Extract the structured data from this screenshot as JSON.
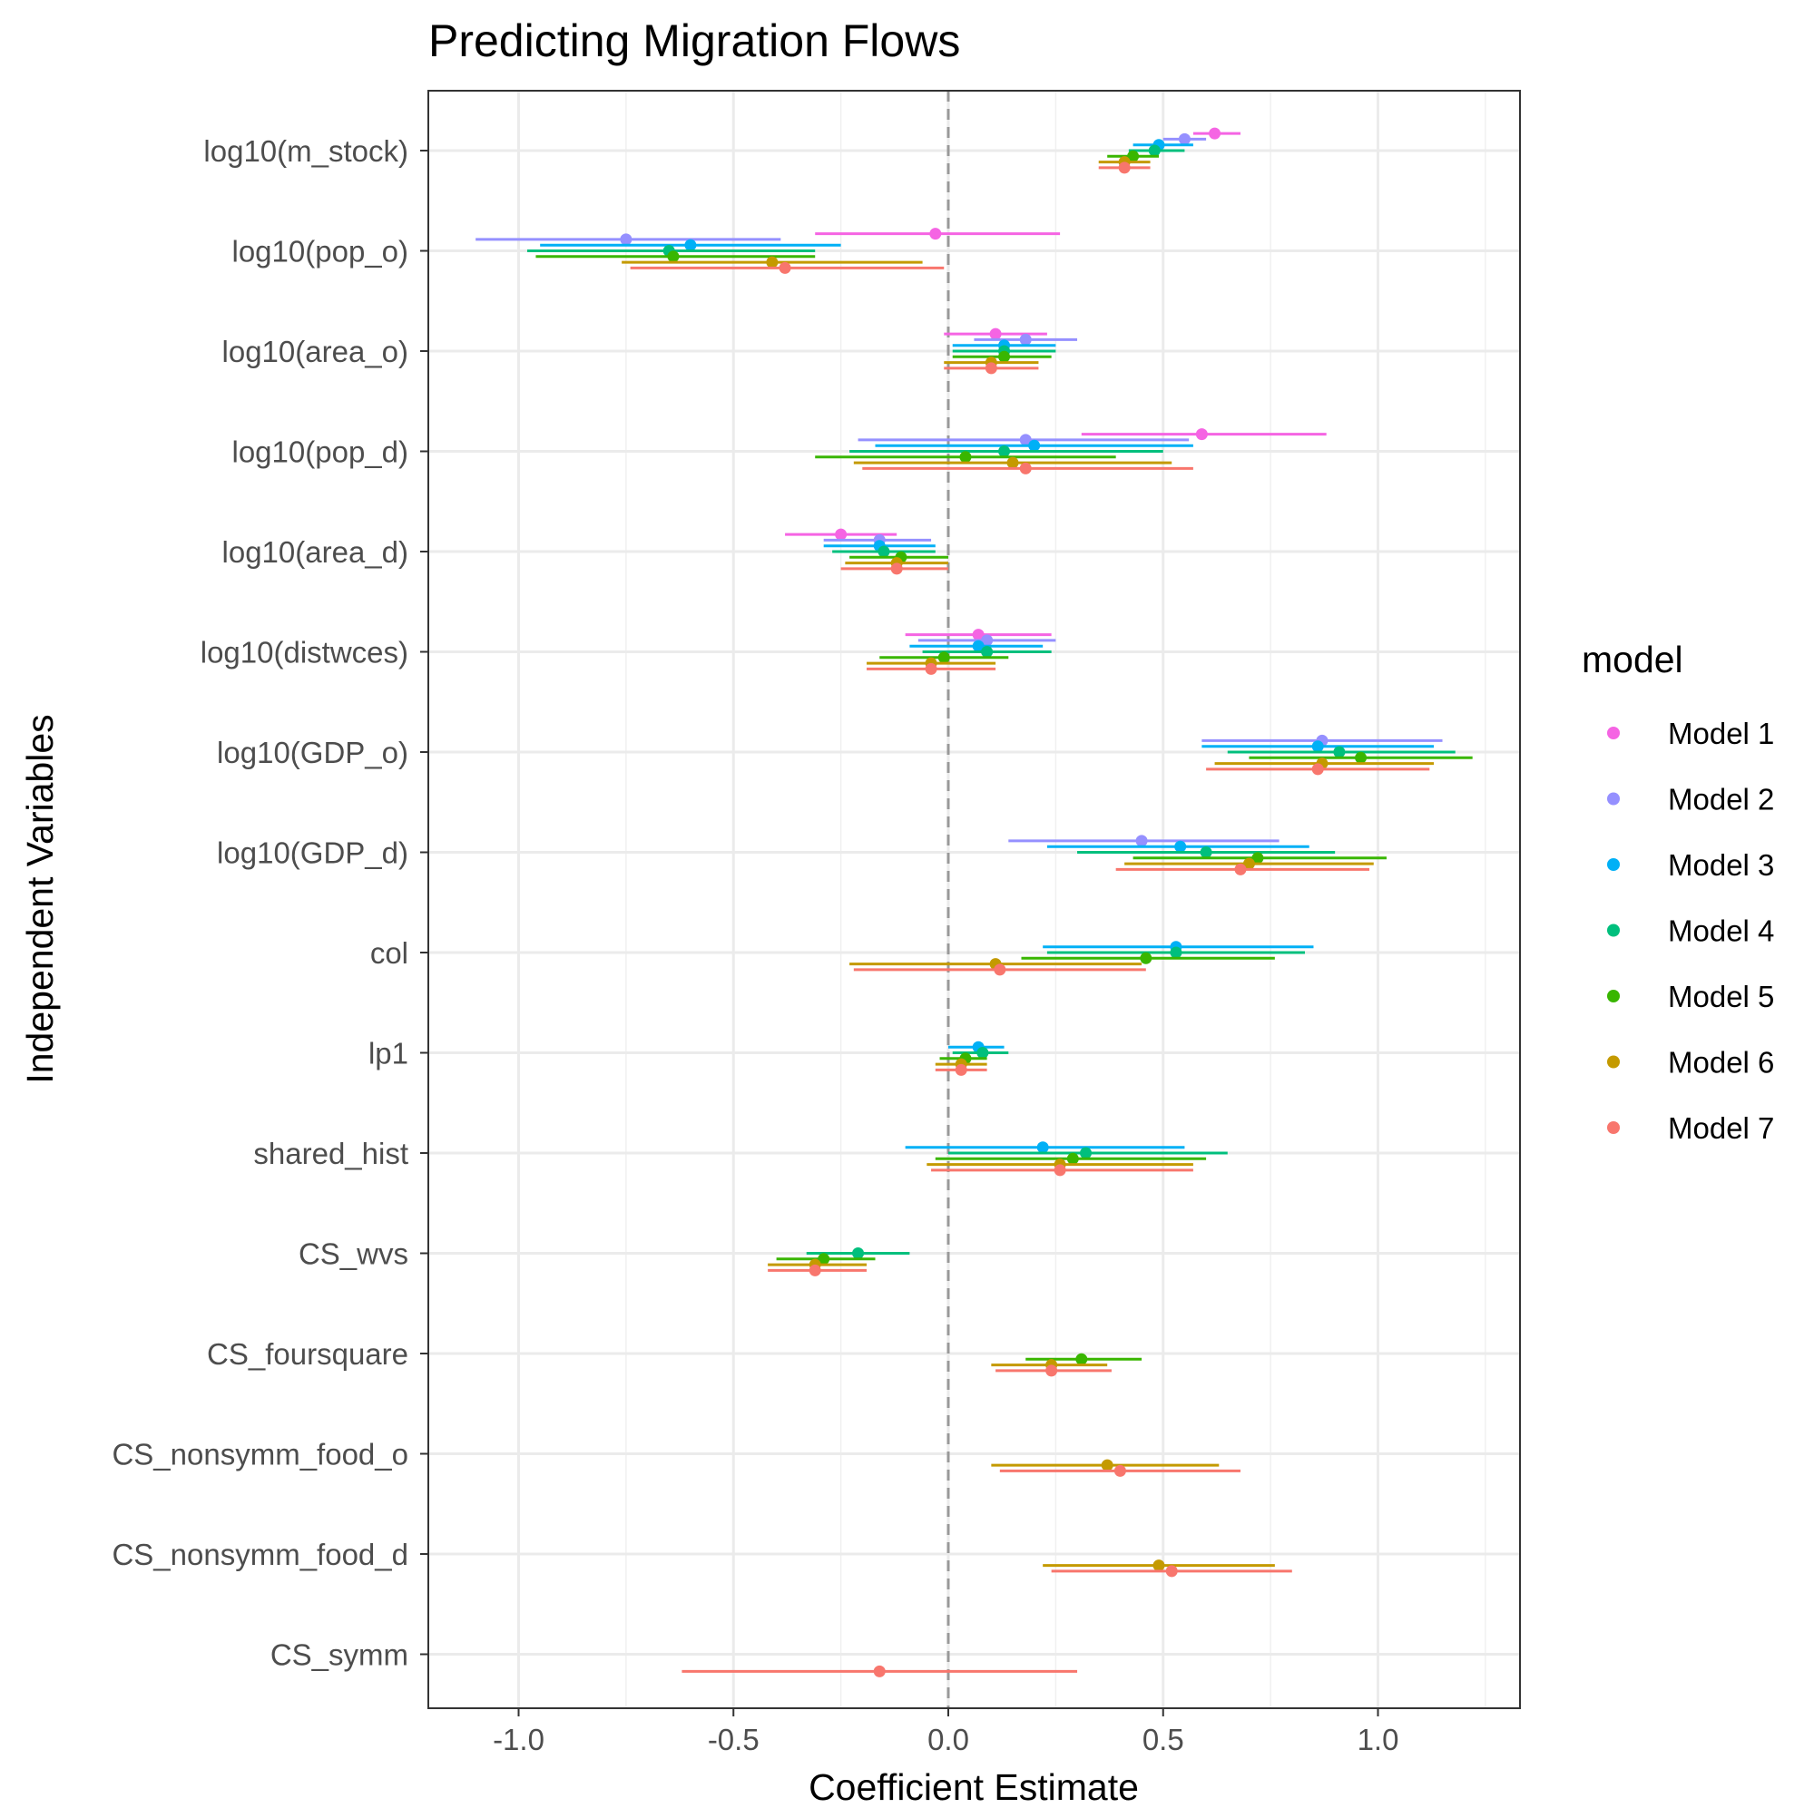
{
  "chart_data": {
    "type": "coefficient-plot",
    "title": "Predicting Migration Flows",
    "xlabel": "Coefficient Estimate",
    "ylabel": "Independent Variables",
    "xlim": [
      -1.2,
      1.3
    ],
    "x_ticks": [
      -1.0,
      -0.5,
      0.0,
      0.5,
      1.0
    ],
    "x_tick_labels": [
      "-1.0",
      "-0.5",
      "0.0",
      "0.5",
      "1.0"
    ],
    "reference_line": 0,
    "grid": true,
    "legend": {
      "title": "model",
      "position": "right"
    },
    "categories": [
      "log10(m_stock)",
      "log10(pop_o)",
      "log10(area_o)",
      "log10(pop_d)",
      "log10(area_d)",
      "log10(distwces)",
      "log10(GDP_o)",
      "log10(GDP_d)",
      "col",
      "lp1",
      "shared_hist",
      "CS_wvs",
      "CS_foursquare",
      "CS_nonsymm_food_o",
      "CS_nonsymm_food_d",
      "CS_symm"
    ],
    "series": [
      {
        "name": "Model 1",
        "color": "#F564E3",
        "points": [
          {
            "variable": "log10(m_stock)",
            "estimate": 0.62,
            "low": 0.57,
            "high": 0.68
          },
          {
            "variable": "log10(pop_o)",
            "estimate": -0.03,
            "low": -0.31,
            "high": 0.26
          },
          {
            "variable": "log10(area_o)",
            "estimate": 0.11,
            "low": -0.01,
            "high": 0.23
          },
          {
            "variable": "log10(pop_d)",
            "estimate": 0.59,
            "low": 0.31,
            "high": 0.88
          },
          {
            "variable": "log10(area_d)",
            "estimate": -0.25,
            "low": -0.38,
            "high": -0.12
          },
          {
            "variable": "log10(distwces)",
            "estimate": 0.07,
            "low": -0.1,
            "high": 0.24
          }
        ]
      },
      {
        "name": "Model 2",
        "color": "#9590FF",
        "points": [
          {
            "variable": "log10(m_stock)",
            "estimate": 0.55,
            "low": 0.5,
            "high": 0.6
          },
          {
            "variable": "log10(pop_o)",
            "estimate": -0.75,
            "low": -1.1,
            "high": -0.39
          },
          {
            "variable": "log10(area_o)",
            "estimate": 0.18,
            "low": 0.06,
            "high": 0.3
          },
          {
            "variable": "log10(pop_d)",
            "estimate": 0.18,
            "low": -0.21,
            "high": 0.56
          },
          {
            "variable": "log10(area_d)",
            "estimate": -0.16,
            "low": -0.29,
            "high": -0.04
          },
          {
            "variable": "log10(distwces)",
            "estimate": 0.09,
            "low": -0.07,
            "high": 0.25
          },
          {
            "variable": "log10(GDP_o)",
            "estimate": 0.87,
            "low": 0.59,
            "high": 1.15
          },
          {
            "variable": "log10(GDP_d)",
            "estimate": 0.45,
            "low": 0.14,
            "high": 0.77
          }
        ]
      },
      {
        "name": "Model 3",
        "color": "#00B0F6",
        "points": [
          {
            "variable": "log10(m_stock)",
            "estimate": 0.49,
            "low": 0.43,
            "high": 0.57
          },
          {
            "variable": "log10(pop_o)",
            "estimate": -0.6,
            "low": -0.95,
            "high": -0.25
          },
          {
            "variable": "log10(area_o)",
            "estimate": 0.13,
            "low": 0.01,
            "high": 0.25
          },
          {
            "variable": "log10(pop_d)",
            "estimate": 0.2,
            "low": -0.17,
            "high": 0.57
          },
          {
            "variable": "log10(area_d)",
            "estimate": -0.16,
            "low": -0.29,
            "high": -0.03
          },
          {
            "variable": "log10(distwces)",
            "estimate": 0.07,
            "low": -0.09,
            "high": 0.22
          },
          {
            "variable": "log10(GDP_o)",
            "estimate": 0.86,
            "low": 0.59,
            "high": 1.13
          },
          {
            "variable": "log10(GDP_d)",
            "estimate": 0.54,
            "low": 0.23,
            "high": 0.84
          },
          {
            "variable": "col",
            "estimate": 0.53,
            "low": 0.22,
            "high": 0.85
          },
          {
            "variable": "lp1",
            "estimate": 0.07,
            "low": 0.0,
            "high": 0.13
          },
          {
            "variable": "shared_hist",
            "estimate": 0.22,
            "low": -0.1,
            "high": 0.55
          }
        ]
      },
      {
        "name": "Model 4",
        "color": "#00BF7D",
        "points": [
          {
            "variable": "log10(m_stock)",
            "estimate": 0.48,
            "low": 0.42,
            "high": 0.55
          },
          {
            "variable": "log10(pop_o)",
            "estimate": -0.65,
            "low": -0.98,
            "high": -0.31
          },
          {
            "variable": "log10(area_o)",
            "estimate": 0.13,
            "low": 0.01,
            "high": 0.25
          },
          {
            "variable": "log10(pop_d)",
            "estimate": 0.13,
            "low": -0.23,
            "high": 0.5
          },
          {
            "variable": "log10(area_d)",
            "estimate": -0.15,
            "low": -0.27,
            "high": -0.03
          },
          {
            "variable": "log10(distwces)",
            "estimate": 0.09,
            "low": -0.06,
            "high": 0.24
          },
          {
            "variable": "log10(GDP_o)",
            "estimate": 0.91,
            "low": 0.65,
            "high": 1.18
          },
          {
            "variable": "log10(GDP_d)",
            "estimate": 0.6,
            "low": 0.3,
            "high": 0.9
          },
          {
            "variable": "col",
            "estimate": 0.53,
            "low": 0.23,
            "high": 0.83
          },
          {
            "variable": "lp1",
            "estimate": 0.08,
            "low": 0.01,
            "high": 0.14
          },
          {
            "variable": "shared_hist",
            "estimate": 0.32,
            "low": 0.0,
            "high": 0.65
          },
          {
            "variable": "CS_wvs",
            "estimate": -0.21,
            "low": -0.33,
            "high": -0.09
          }
        ]
      },
      {
        "name": "Model 5",
        "color": "#39B600",
        "points": [
          {
            "variable": "log10(m_stock)",
            "estimate": 0.43,
            "low": 0.37,
            "high": 0.49
          },
          {
            "variable": "log10(pop_o)",
            "estimate": -0.64,
            "low": -0.96,
            "high": -0.31
          },
          {
            "variable": "log10(area_o)",
            "estimate": 0.13,
            "low": 0.01,
            "high": 0.24
          },
          {
            "variable": "log10(pop_d)",
            "estimate": 0.04,
            "low": -0.31,
            "high": 0.39
          },
          {
            "variable": "log10(area_d)",
            "estimate": -0.11,
            "low": -0.23,
            "high": 0.0
          },
          {
            "variable": "log10(distwces)",
            "estimate": -0.01,
            "low": -0.16,
            "high": 0.14
          },
          {
            "variable": "log10(GDP_o)",
            "estimate": 0.96,
            "low": 0.7,
            "high": 1.22
          },
          {
            "variable": "log10(GDP_d)",
            "estimate": 0.72,
            "low": 0.43,
            "high": 1.02
          },
          {
            "variable": "col",
            "estimate": 0.46,
            "low": 0.17,
            "high": 0.76
          },
          {
            "variable": "lp1",
            "estimate": 0.04,
            "low": -0.02,
            "high": 0.09
          },
          {
            "variable": "shared_hist",
            "estimate": 0.29,
            "low": -0.03,
            "high": 0.6
          },
          {
            "variable": "CS_wvs",
            "estimate": -0.29,
            "low": -0.4,
            "high": -0.17
          },
          {
            "variable": "CS_foursquare",
            "estimate": 0.31,
            "low": 0.18,
            "high": 0.45
          }
        ]
      },
      {
        "name": "Model 6",
        "color": "#C49A00",
        "points": [
          {
            "variable": "log10(m_stock)",
            "estimate": 0.41,
            "low": 0.35,
            "high": 0.47
          },
          {
            "variable": "log10(pop_o)",
            "estimate": -0.41,
            "low": -0.76,
            "high": -0.06
          },
          {
            "variable": "log10(area_o)",
            "estimate": 0.1,
            "low": -0.01,
            "high": 0.21
          },
          {
            "variable": "log10(pop_d)",
            "estimate": 0.15,
            "low": -0.22,
            "high": 0.52
          },
          {
            "variable": "log10(area_d)",
            "estimate": -0.12,
            "low": -0.24,
            "high": 0.0
          },
          {
            "variable": "log10(distwces)",
            "estimate": -0.04,
            "low": -0.19,
            "high": 0.11
          },
          {
            "variable": "log10(GDP_o)",
            "estimate": 0.87,
            "low": 0.62,
            "high": 1.13
          },
          {
            "variable": "log10(GDP_d)",
            "estimate": 0.7,
            "low": 0.41,
            "high": 0.99
          },
          {
            "variable": "col",
            "estimate": 0.11,
            "low": -0.23,
            "high": 0.45
          },
          {
            "variable": "lp1",
            "estimate": 0.03,
            "low": -0.03,
            "high": 0.09
          },
          {
            "variable": "shared_hist",
            "estimate": 0.26,
            "low": -0.05,
            "high": 0.57
          },
          {
            "variable": "CS_wvs",
            "estimate": -0.31,
            "low": -0.42,
            "high": -0.19
          },
          {
            "variable": "CS_foursquare",
            "estimate": 0.24,
            "low": 0.1,
            "high": 0.37
          },
          {
            "variable": "CS_nonsymm_food_o",
            "estimate": 0.37,
            "low": 0.1,
            "high": 0.63
          },
          {
            "variable": "CS_nonsymm_food_d",
            "estimate": 0.49,
            "low": 0.22,
            "high": 0.76
          }
        ]
      },
      {
        "name": "Model 7",
        "color": "#F8766D",
        "points": [
          {
            "variable": "log10(m_stock)",
            "estimate": 0.41,
            "low": 0.35,
            "high": 0.47
          },
          {
            "variable": "log10(pop_o)",
            "estimate": -0.38,
            "low": -0.74,
            "high": -0.01
          },
          {
            "variable": "log10(area_o)",
            "estimate": 0.1,
            "low": -0.01,
            "high": 0.21
          },
          {
            "variable": "log10(pop_d)",
            "estimate": 0.18,
            "low": -0.2,
            "high": 0.57
          },
          {
            "variable": "log10(area_d)",
            "estimate": -0.12,
            "low": -0.25,
            "high": 0.0
          },
          {
            "variable": "log10(distwces)",
            "estimate": -0.04,
            "low": -0.19,
            "high": 0.11
          },
          {
            "variable": "log10(GDP_o)",
            "estimate": 0.86,
            "low": 0.6,
            "high": 1.12
          },
          {
            "variable": "log10(GDP_d)",
            "estimate": 0.68,
            "low": 0.39,
            "high": 0.98
          },
          {
            "variable": "col",
            "estimate": 0.12,
            "low": -0.22,
            "high": 0.46
          },
          {
            "variable": "lp1",
            "estimate": 0.03,
            "low": -0.03,
            "high": 0.09
          },
          {
            "variable": "shared_hist",
            "estimate": 0.26,
            "low": -0.04,
            "high": 0.57
          },
          {
            "variable": "CS_wvs",
            "estimate": -0.31,
            "low": -0.42,
            "high": -0.19
          },
          {
            "variable": "CS_foursquare",
            "estimate": 0.24,
            "low": 0.11,
            "high": 0.38
          },
          {
            "variable": "CS_nonsymm_food_o",
            "estimate": 0.4,
            "low": 0.12,
            "high": 0.68
          },
          {
            "variable": "CS_nonsymm_food_d",
            "estimate": 0.52,
            "low": 0.24,
            "high": 0.8
          },
          {
            "variable": "CS_symm",
            "estimate": -0.16,
            "low": -0.62,
            "high": 0.3
          }
        ]
      }
    ]
  }
}
